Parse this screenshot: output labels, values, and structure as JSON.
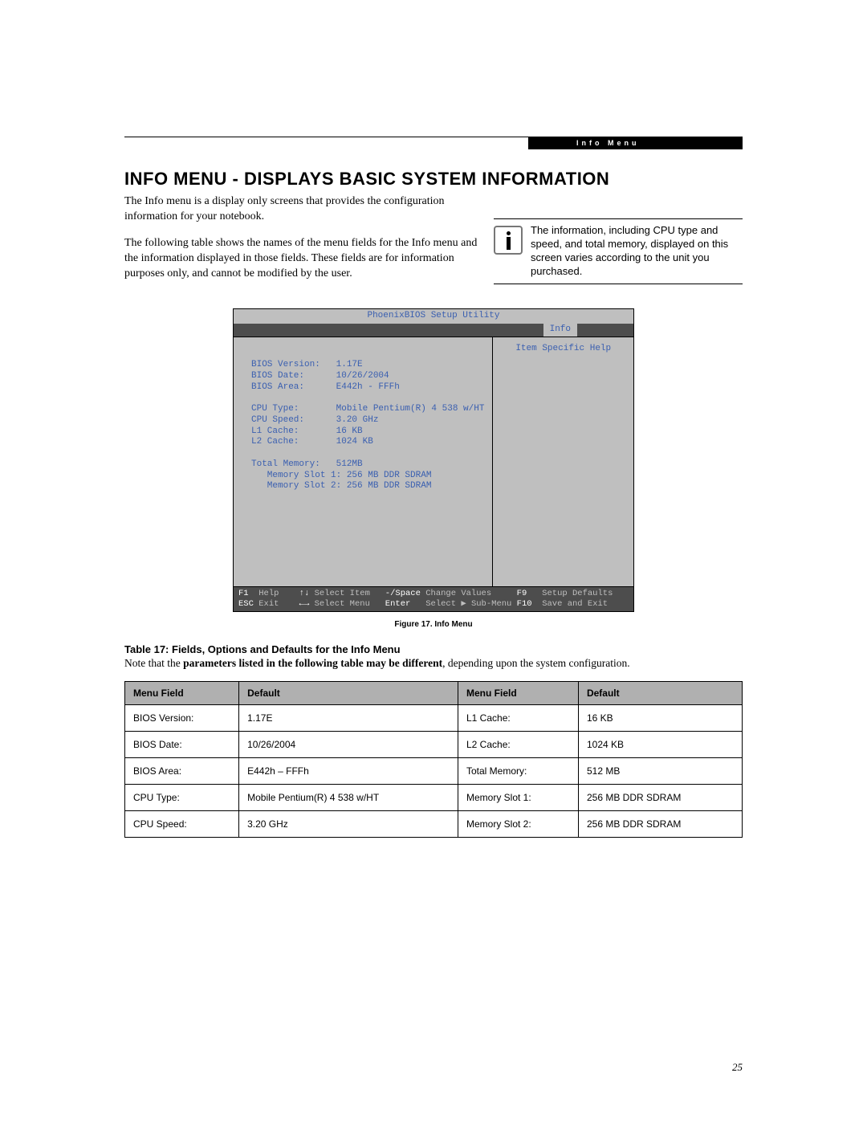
{
  "header": {
    "strip_label": "Info Menu"
  },
  "heading": "INFO MENU - DISPLAYS BASIC SYSTEM INFORMATION",
  "intro": {
    "p1": "The Info menu is a display only screens that provides the configuration information for your notebook.",
    "p2": "The following table shows the names of the menu fields for the Info menu and the information displayed in those fields. These fields are for information purposes only, and cannot be modified by the user."
  },
  "callout": "The information, including CPU type and speed, and total memory, displayed on this screen varies according to the unit you purchased.",
  "bios": {
    "title": "PhoenixBIOS Setup Utility",
    "tab": "Info",
    "help_title": "Item Specific Help",
    "rows": [
      "BIOS Version:   1.17E",
      "BIOS Date:      10/26/2004",
      "BIOS Area:      E442h - FFFh",
      "",
      "CPU Type:       Mobile Pentium(R) 4 538 w/HT",
      "CPU Speed:      3.20 GHz",
      "L1 Cache:       16 KB",
      "L2 Cache:       1024 KB",
      "",
      "Total Memory:   512MB",
      "   Memory Slot 1: 256 MB DDR SDRAM",
      "   Memory Slot 2: 256 MB DDR SDRAM"
    ],
    "footer": {
      "l1_k1": "F1",
      "l1_v1": "Help",
      "l1_k2": "↑↓",
      "l1_v2": "Select Item",
      "l1_k3": "-/Space",
      "l1_v3": "Change Values",
      "l1_k4": "F9",
      "l1_v4": "Setup Defaults",
      "l2_k1": "ESC",
      "l2_v1": "Exit",
      "l2_k2": "←→",
      "l2_v2": "Select Menu",
      "l2_k3": "Enter",
      "l2_v3": "Select ▶ Sub-Menu",
      "l2_k4": "F10",
      "l2_v4": "Save and Exit"
    }
  },
  "figure_caption": "Figure 17.  Info Menu",
  "table": {
    "title": "Table 17: Fields, Options and Defaults for the Info Menu",
    "note_prefix": "Note that the ",
    "note_bold": "parameters listed in the following table may be different",
    "note_suffix": ", depending upon the system configuration.",
    "headers": {
      "c1": "Menu Field",
      "c2": "Default",
      "c3": "Menu Field",
      "c4": "Default"
    },
    "rows": [
      {
        "c1": "BIOS Version:",
        "c2": "1.17E",
        "c3": "L1 Cache:",
        "c4": "16 KB"
      },
      {
        "c1": "BIOS Date:",
        "c2": "10/26/2004",
        "c3": "L2 Cache:",
        "c4": "1024 KB"
      },
      {
        "c1": "BIOS Area:",
        "c2": "E442h – FFFh",
        "c3": "Total Memory:",
        "c4": "512 MB"
      },
      {
        "c1": "CPU Type:",
        "c2": "Mobile Pentium(R) 4 538 w/HT",
        "c3": "Memory Slot 1:",
        "c4": "256 MB DDR SDRAM"
      },
      {
        "c1": "CPU Speed:",
        "c2": "3.20 GHz",
        "c3": "Memory Slot 2:",
        "c4": "256 MB DDR SDRAM"
      }
    ]
  },
  "page_number": "25",
  "colors": {
    "bios_bg": "#bfbfbf",
    "bios_dark": "#4d4d4d",
    "bios_blue": "#3a5fb0",
    "table_header_bg": "#b0b0b0"
  }
}
